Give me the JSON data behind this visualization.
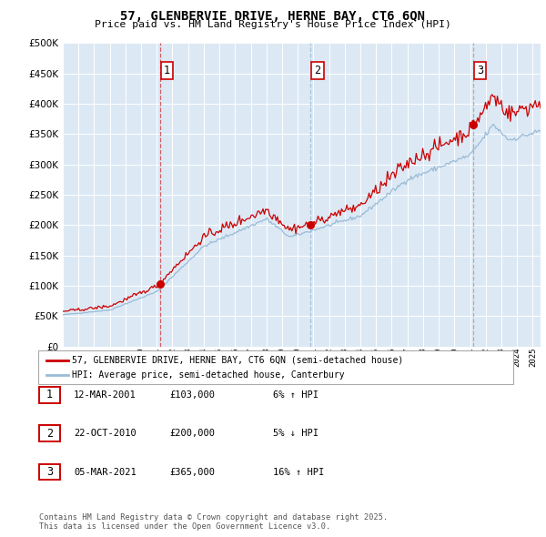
{
  "title_line1": "57, GLENBERVIE DRIVE, HERNE BAY, CT6 6QN",
  "title_line2": "Price paid vs. HM Land Registry's House Price Index (HPI)",
  "bg_color": "#dce9f5",
  "red_line_color": "#cc0000",
  "blue_line_color": "#99bbd6",
  "sale_marker_color": "#cc0000",
  "sale_events": [
    {
      "num": 1,
      "date": "12-MAR-2001",
      "price": 103000,
      "x_year": 2001.19,
      "hpi_pct": "6% ↑ HPI",
      "vline_color": "#cc0000",
      "vline_alpha": 0.6
    },
    {
      "num": 2,
      "date": "22-OCT-2010",
      "price": 200000,
      "x_year": 2010.81,
      "hpi_pct": "5% ↓ HPI",
      "vline_color": "#7799bb",
      "vline_alpha": 0.5
    },
    {
      "num": 3,
      "date": "05-MAR-2021",
      "price": 365000,
      "x_year": 2021.18,
      "hpi_pct": "16% ↑ HPI",
      "vline_color": "#888888",
      "vline_alpha": 0.6
    }
  ],
  "legend_label_red": "57, GLENBERVIE DRIVE, HERNE BAY, CT6 6QN (semi-detached house)",
  "legend_label_blue": "HPI: Average price, semi-detached house, Canterbury",
  "footer_text": "Contains HM Land Registry data © Crown copyright and database right 2025.\nThis data is licensed under the Open Government Licence v3.0.",
  "ylim": [
    0,
    500000
  ],
  "yticks": [
    0,
    50000,
    100000,
    150000,
    200000,
    250000,
    300000,
    350000,
    400000,
    450000,
    500000
  ],
  "xmin": 1995.0,
  "xmax": 2025.5,
  "xtick_years": [
    1995,
    1996,
    1997,
    1998,
    1999,
    2000,
    2001,
    2002,
    2003,
    2004,
    2005,
    2006,
    2007,
    2008,
    2009,
    2010,
    2011,
    2012,
    2013,
    2014,
    2015,
    2016,
    2017,
    2018,
    2019,
    2020,
    2021,
    2022,
    2023,
    2024,
    2025
  ]
}
